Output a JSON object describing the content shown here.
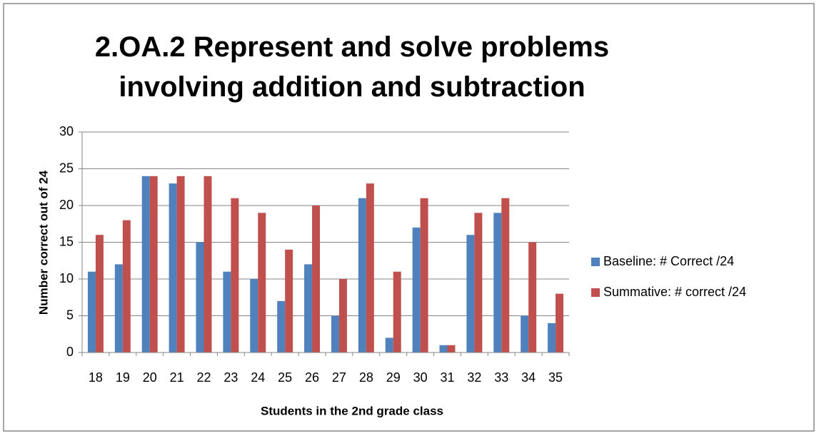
{
  "chart_data": {
    "type": "bar",
    "title": "2.OA.2 Represent and solve problems involving addition and subtraction",
    "x_label": "Students in the 2nd grade class",
    "y_label": "Number correct out of 24",
    "categories": [
      "18",
      "19",
      "20",
      "21",
      "22",
      "23",
      "24",
      "25",
      "26",
      "27",
      "28",
      "29",
      "30",
      "31",
      "32",
      "33",
      "34",
      "35"
    ],
    "series": [
      {
        "name": "Baseline: # Correct /24",
        "color": "#4f81bd",
        "values": [
          11,
          12,
          24,
          23,
          15,
          11,
          10,
          7,
          12,
          5,
          21,
          2,
          17,
          1,
          16,
          19,
          5,
          4
        ]
      },
      {
        "name": "Summative: # correct /24",
        "color": "#c0504d",
        "values": [
          16,
          18,
          24,
          24,
          24,
          21,
          19,
          14,
          20,
          10,
          23,
          11,
          21,
          1,
          19,
          21,
          15,
          8
        ]
      }
    ],
    "ylim": [
      0,
      30
    ],
    "yticks": [
      0,
      5,
      10,
      15,
      20,
      25,
      30
    ],
    "grid": true,
    "legend": "right"
  }
}
